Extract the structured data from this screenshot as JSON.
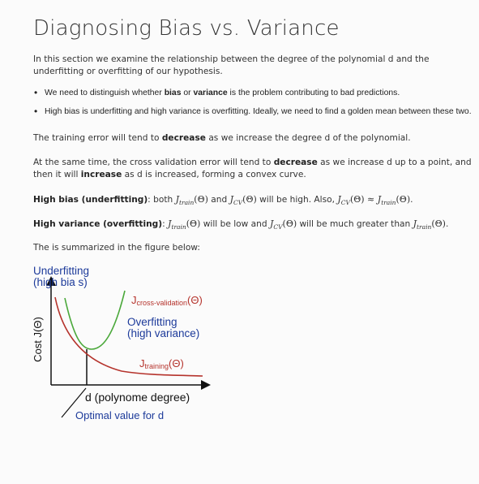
{
  "title": "Diagnosing Bias vs. Variance",
  "intro": "In this section we examine the relationship between the degree of the polynomial d and the underfitting or overfitting of our hypothesis.",
  "bullets": [
    {
      "pre": "We need to distinguish whether ",
      "b1": "bias",
      "mid": " or ",
      "b2": "variance",
      "post": " is the problem contributing to bad predictions."
    },
    {
      "text": "High bias is underfitting and high variance is overfitting. Ideally, we need to find a golden mean between these two."
    }
  ],
  "training": {
    "pre": "The training error will tend to ",
    "bold": "decrease",
    "post": " as we increase the degree d of the polynomial."
  },
  "cv": {
    "pre": "At the same time, the cross validation error will tend to ",
    "bold1": "decrease",
    "mid": " as we increase d up to a point, and then it will ",
    "bold2": "increase",
    "post": " as d is increased, forming a convex curve."
  },
  "high_bias": {
    "label": "High bias (underfitting)",
    "pre": ": both ",
    "and": " and ",
    "post": " will be high. Also, ",
    "end": "."
  },
  "high_variance": {
    "label": "High variance (overfitting)",
    "pre": ": ",
    "mid": " will be low and ",
    "post": " will be much greater than ",
    "end": "."
  },
  "math": {
    "j_train": "J",
    "sub_train": "train",
    "theta": "(Θ)",
    "j_cv": "J",
    "sub_cv": "CV",
    "approx": " ≈ "
  },
  "summary": "The is summarized in the figure below:",
  "figure": {
    "underfit_line1": "Underfitting",
    "underfit_line2": "(high bia s)",
    "y_axis": "Cost J(Θ)",
    "cv_J": "J",
    "cv_sub": "cross-validation",
    "cv_theta": "(Θ)",
    "overfit_line1": "Overfitting",
    "overfit_line2": "(high variance)",
    "train_J": "J",
    "train_sub": "training",
    "train_theta": "(Θ)",
    "x_axis": "d (polynome degree)",
    "optimal": "Optimal value for d",
    "colors": {
      "cv": "#4aa83a",
      "train": "#b5332c",
      "blue": "#1c3a9a",
      "axis": "#111111"
    }
  }
}
